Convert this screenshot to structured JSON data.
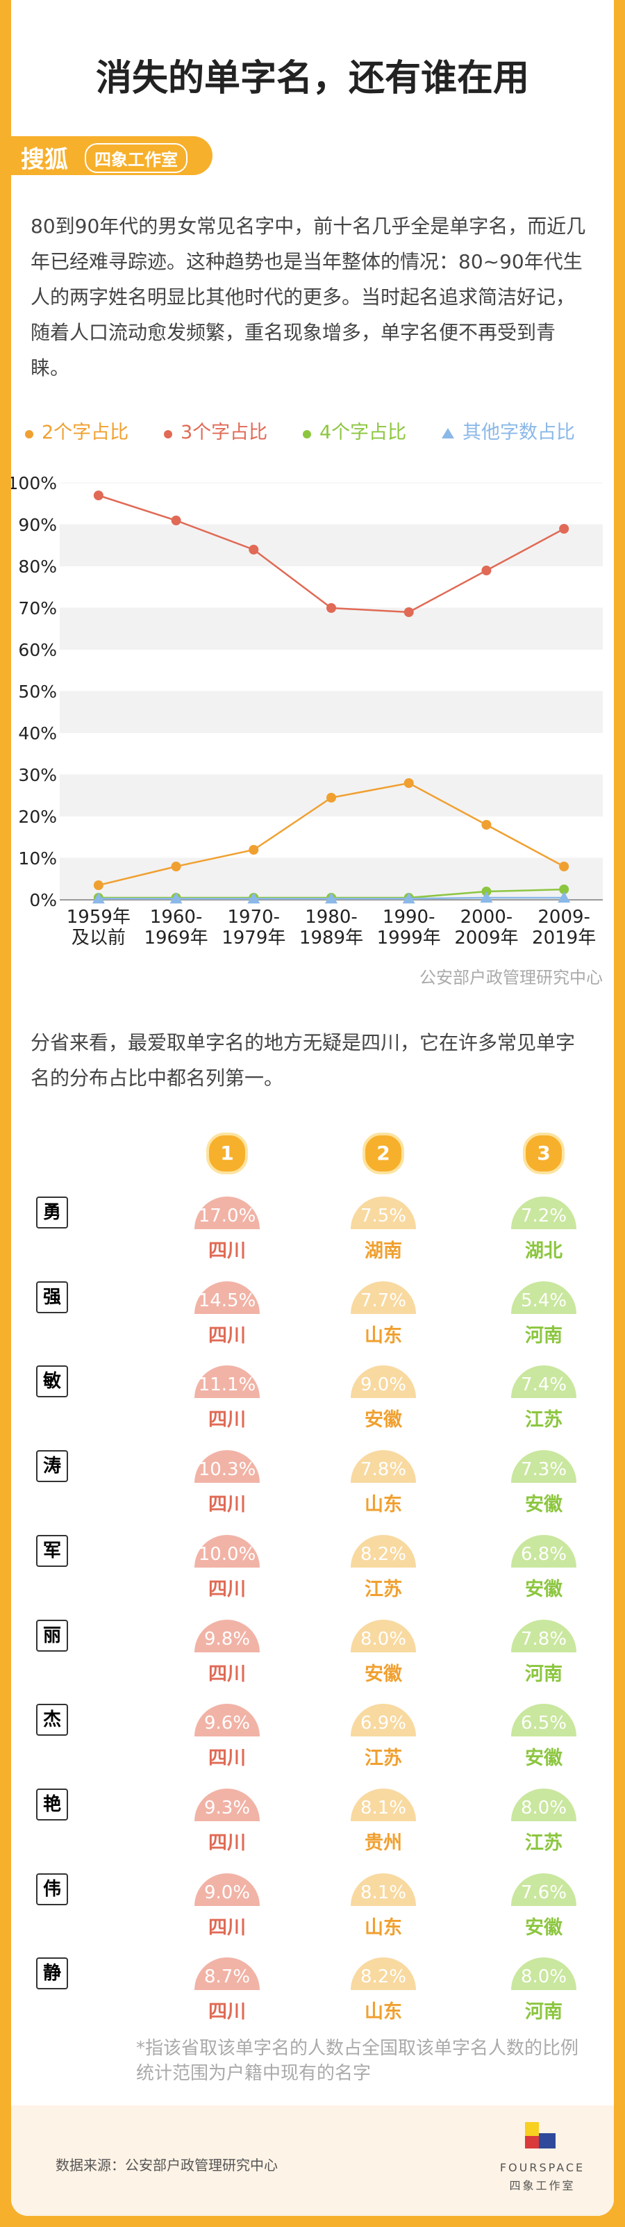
{
  "header": {
    "title": "消失的单字名，还有谁在用",
    "brand": "搜狐",
    "studio": "四象工作室"
  },
  "intro": "80到90年代的男女常见名字中，前十名几乎全是单字名，而近几年已经难寻踪迹。这种趋势也是当年整体的情况：80~90年代生人的两字姓名明显比其他时代的更多。当时起名追求简洁好记，随着人口流动愈发频繁，重名现象增多，单字名便不再受到青睐。",
  "chart_data": {
    "type": "line",
    "source": "公安部户政管理研究中心",
    "categories": [
      "1959年\n及以前",
      "1960-\n1969年",
      "1970-\n1979年",
      "1980-\n1989年",
      "1990-\n1999年",
      "2000-\n2009年",
      "2009-\n2019年"
    ],
    "series": [
      {
        "name": "2个字占比",
        "color": "#f0a030",
        "marker": "circle",
        "values": [
          3.5,
          8,
          12,
          24.5,
          28,
          18,
          8
        ]
      },
      {
        "name": "3个字占比",
        "color": "#e06a55",
        "marker": "circle",
        "values": [
          97,
          91,
          84,
          70,
          69,
          79,
          89
        ]
      },
      {
        "name": "4个字占比",
        "color": "#8cc63f",
        "marker": "circle",
        "values": [
          0.5,
          0.5,
          0.5,
          0.5,
          0.5,
          2,
          2.5
        ]
      },
      {
        "name": "其他字数占比",
        "color": "#8ab8e8",
        "marker": "triangle",
        "values": [
          0.3,
          0.3,
          0.3,
          0.3,
          0.3,
          0.5,
          0.5
        ]
      }
    ],
    "ylim": [
      0,
      100
    ],
    "yticks": [
      {
        "value": 0,
        "label": "0%"
      },
      {
        "value": 10,
        "label": "10%"
      },
      {
        "value": 20,
        "label": "20%"
      },
      {
        "value": 30,
        "label": "30%"
      },
      {
        "value": 40,
        "label": "40%"
      },
      {
        "value": 50,
        "label": "50%"
      },
      {
        "value": 60,
        "label": "60%"
      },
      {
        "value": 70,
        "label": "70%"
      },
      {
        "value": 80,
        "label": "80%"
      },
      {
        "value": 90,
        "label": "90%"
      },
      {
        "value": 100,
        "label": "100%"
      }
    ],
    "grid": true
  },
  "section2": "分省来看，最爱取单字名的地方无疑是四川，它在许多常见单字名的分布占比中都名列第一。",
  "table": {
    "ranks": [
      "1",
      "2",
      "3"
    ],
    "rows": [
      [
        "勇",
        "17.0%",
        "四川",
        "7.5%",
        "湖南",
        "7.2%",
        "湖北"
      ],
      [
        "强",
        "14.5%",
        "四川",
        "7.7%",
        "山东",
        "5.4%",
        "河南"
      ],
      [
        "敏",
        "11.1%",
        "四川",
        "9.0%",
        "安徽",
        "7.4%",
        "江苏"
      ],
      [
        "涛",
        "10.3%",
        "四川",
        "7.8%",
        "山东",
        "7.3%",
        "安徽"
      ],
      [
        "军",
        "10.0%",
        "四川",
        "8.2%",
        "江苏",
        "6.8%",
        "安徽"
      ],
      [
        "丽",
        "9.8%",
        "四川",
        "8.0%",
        "安徽",
        "7.8%",
        "河南"
      ],
      [
        "杰",
        "9.6%",
        "四川",
        "6.9%",
        "江苏",
        "6.5%",
        "安徽"
      ],
      [
        "艳",
        "9.3%",
        "四川",
        "8.1%",
        "贵州",
        "8.0%",
        "江苏"
      ],
      [
        "伟",
        "9.0%",
        "四川",
        "8.1%",
        "山东",
        "7.6%",
        "安徽"
      ],
      [
        "静",
        "8.7%",
        "四川",
        "8.2%",
        "山东",
        "8.0%",
        "河南"
      ]
    ]
  },
  "notes": [
    "*指该省取该单字名的人数占全国取该单字名人数的比例",
    "统计范围为户籍中现有的名字"
  ],
  "footer": {
    "source": "数据来源：公安部户政管理研究中心",
    "logo": "FOURSPACE",
    "studio": "四象工作室"
  }
}
